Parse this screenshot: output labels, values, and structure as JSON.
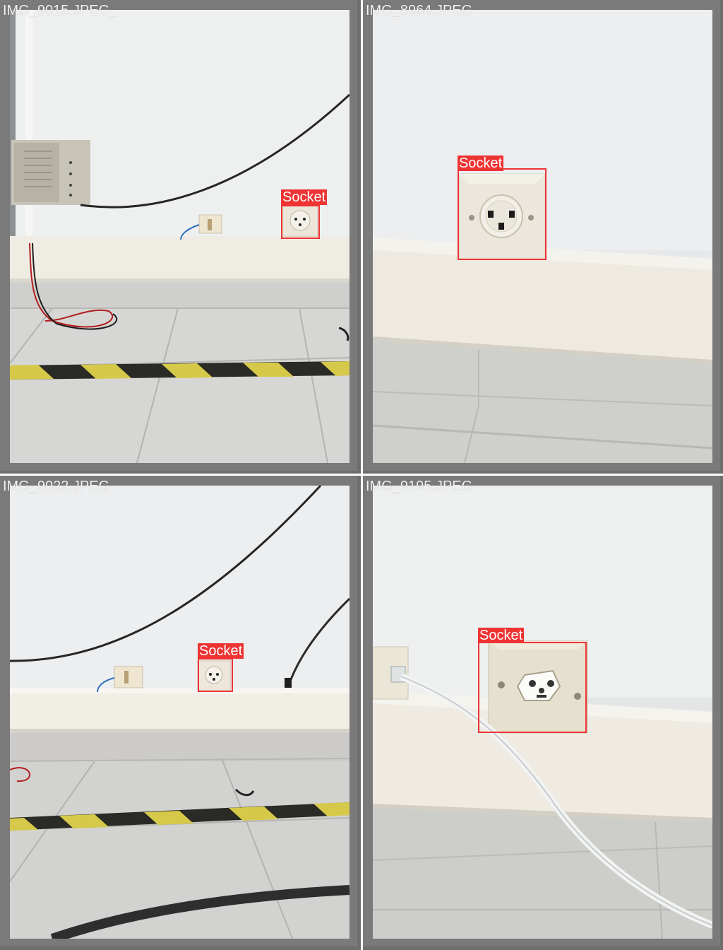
{
  "tiles": [
    {
      "filename": "IMG_9015.JPEG_",
      "detections": [
        {
          "label": "Socket"
        }
      ]
    },
    {
      "filename": "IMG_8964.JPEG",
      "detections": [
        {
          "label": "Socket"
        }
      ]
    },
    {
      "filename": "IMG_9022.JPEG",
      "detections": [
        {
          "label": "Socket"
        }
      ]
    },
    {
      "filename": "IMG_9195.JPEG",
      "detections": [
        {
          "label": "Socket"
        }
      ]
    }
  ],
  "colors": {
    "bbox": "#ee3333",
    "border": "#7a7a7a",
    "separator": "#ffffff"
  }
}
